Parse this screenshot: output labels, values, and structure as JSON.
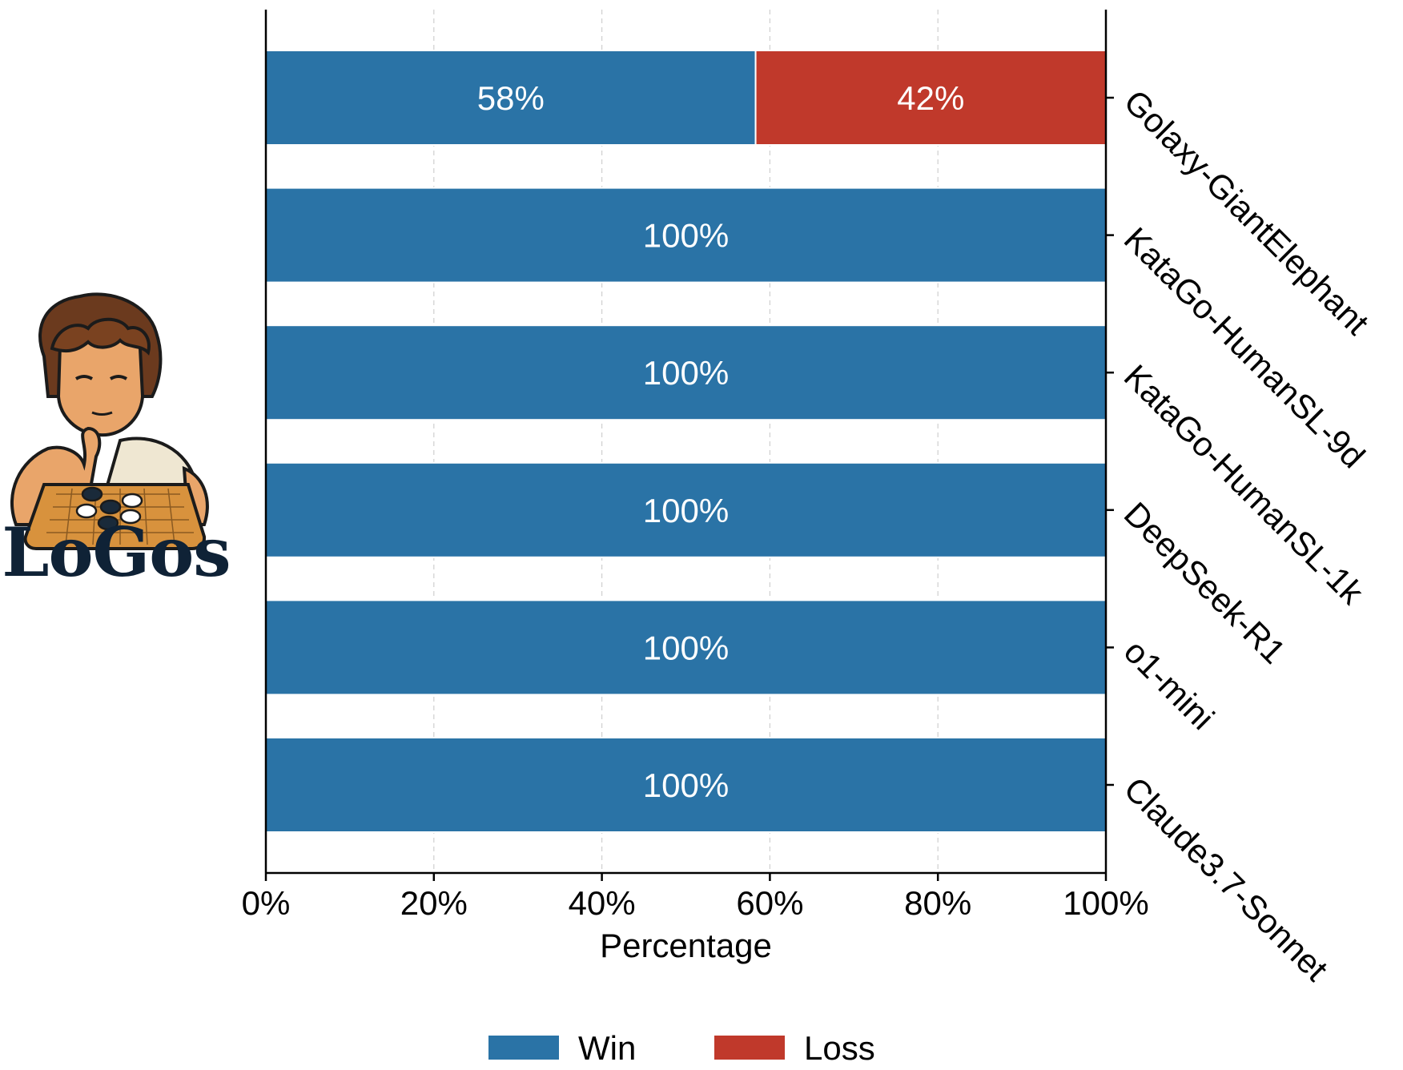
{
  "logo": {
    "text": "LoGos",
    "name": "LoGos",
    "colors": {
      "text": "#0f2236",
      "hair": "#6b3a1e",
      "skin": "#e9a56a",
      "board": "#d8923d",
      "toga": "#efe7d2"
    }
  },
  "chart_data": {
    "type": "bar",
    "orientation": "horizontal",
    "stacked": true,
    "categories": [
      "Golaxy-GiantElephant",
      "KataGo-HumanSL-9d",
      "KataGo-HumanSL-1k",
      "DeepSeek-R1",
      "o1-mini",
      "Claude3.7-Sonnet"
    ],
    "series": [
      {
        "name": "Win",
        "color": "#2a73a6",
        "values": [
          58.3,
          100,
          100,
          100,
          100,
          100
        ],
        "labels": [
          "58%",
          "100%",
          "100%",
          "100%",
          "100%",
          "100%"
        ]
      },
      {
        "name": "Loss",
        "color": "#c0392b",
        "values": [
          41.7,
          0,
          0,
          0,
          0,
          0
        ],
        "labels": [
          "42%",
          "",
          "",
          "",
          "",
          ""
        ]
      }
    ],
    "xlabel": "Percentage",
    "xlim": [
      0,
      100
    ],
    "xticks": [
      "0%",
      "20%",
      "40%",
      "60%",
      "80%",
      "100%"
    ],
    "grid": "vertical dashed",
    "category_axis": "right",
    "legend_position": "bottom-center"
  }
}
